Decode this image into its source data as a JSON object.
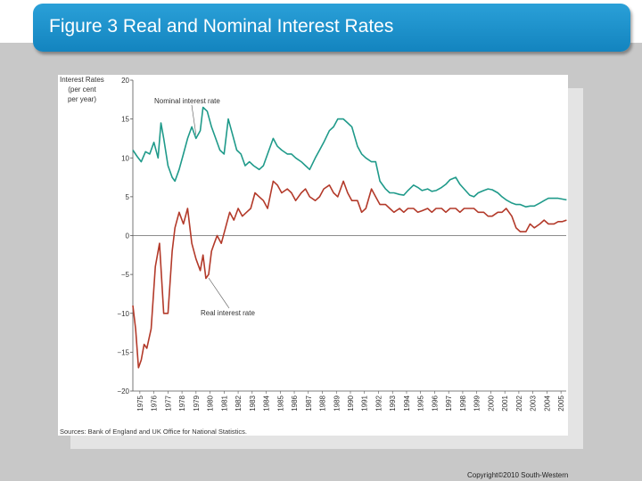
{
  "slide": {
    "title": "Figure 3 Real and Nominal Interest Rates",
    "copyright": "Copyright©2010  South-Western",
    "title_bar_color": "#1a8fcb"
  },
  "chart_data": {
    "type": "line",
    "ylabel_lines": [
      "Interest Rates",
      "(per cent",
      "per year)"
    ],
    "yticks": [
      20,
      15,
      10,
      5,
      0,
      -5,
      -10,
      -15,
      -20
    ],
    "ylim": [
      -20,
      20
    ],
    "xlim": [
      1975,
      2006
    ],
    "xtick_labels": [
      "1975",
      "1976",
      "1977",
      "1978",
      "1979",
      "1980",
      "1981",
      "1982",
      "1983",
      "1984",
      "1985",
      "1986",
      "1987",
      "1988",
      "1989",
      "1990",
      "1991",
      "1992",
      "1993",
      "1994",
      "1995",
      "1996",
      "1997",
      "1998",
      "1999",
      "2000",
      "2001",
      "2002",
      "2003",
      "2004",
      "2005"
    ],
    "source": "Sources: Bank of England and UK Office for National Statistics.",
    "annotations": [
      {
        "text": "Nominal interest rate",
        "series": 0,
        "point_x": 1979.55
      },
      {
        "text": "Real interest rate",
        "series": 1,
        "point_x": 1980.35
      }
    ],
    "series": [
      {
        "name": "Nominal interest rate",
        "color": "#1f9a8a",
        "x": [
          1975.0,
          1975.3,
          1975.6,
          1975.9,
          1976.2,
          1976.5,
          1976.8,
          1977.0,
          1977.2,
          1977.5,
          1977.8,
          1978.0,
          1978.3,
          1978.6,
          1978.9,
          1979.2,
          1979.5,
          1979.8,
          1980.0,
          1980.3,
          1980.6,
          1980.9,
          1981.2,
          1981.5,
          1981.8,
          1982.1,
          1982.4,
          1982.7,
          1983.0,
          1983.3,
          1983.6,
          1984.0,
          1984.3,
          1984.6,
          1985.0,
          1985.3,
          1985.6,
          1986.0,
          1986.3,
          1986.6,
          1987.0,
          1987.3,
          1987.6,
          1988.0,
          1988.3,
          1988.6,
          1989.0,
          1989.3,
          1989.6,
          1990.0,
          1990.3,
          1990.6,
          1991.0,
          1991.3,
          1991.6,
          1992.0,
          1992.3,
          1992.6,
          1993.0,
          1993.3,
          1993.6,
          1994.0,
          1994.3,
          1994.6,
          1995.0,
          1995.3,
          1995.6,
          1996.0,
          1996.3,
          1996.6,
          1997.0,
          1997.3,
          1997.6,
          1998.0,
          1998.3,
          1998.6,
          1999.0,
          1999.3,
          1999.6,
          2000.0,
          2000.3,
          2000.6,
          2001.0,
          2001.3,
          2001.6,
          2002.0,
          2002.3,
          2002.6,
          2003.0,
          2003.3,
          2003.6,
          2004.0,
          2004.3,
          2004.6,
          2005.0,
          2005.3,
          2005.6,
          2005.9
        ],
        "values": [
          11.0,
          10.2,
          9.5,
          10.8,
          10.5,
          12.0,
          10.0,
          14.5,
          12.5,
          9.0,
          7.5,
          7.0,
          8.5,
          10.5,
          12.5,
          14.0,
          12.5,
          13.5,
          16.5,
          16.0,
          14.0,
          12.5,
          11.0,
          10.5,
          15.0,
          13.0,
          11.0,
          10.5,
          9.0,
          9.5,
          9.0,
          8.5,
          9.0,
          10.5,
          12.5,
          11.5,
          11.0,
          10.5,
          10.5,
          10.0,
          9.5,
          9.0,
          8.5,
          10.0,
          11.0,
          12.0,
          13.5,
          14.0,
          15.0,
          15.0,
          14.5,
          14.0,
          11.5,
          10.5,
          10.0,
          9.5,
          9.5,
          7.0,
          6.0,
          5.5,
          5.5,
          5.3,
          5.2,
          5.8,
          6.5,
          6.2,
          5.8,
          6.0,
          5.7,
          5.8,
          6.2,
          6.6,
          7.2,
          7.5,
          6.6,
          6.0,
          5.2,
          5.0,
          5.5,
          5.8,
          6.0,
          5.9,
          5.5,
          5.0,
          4.6,
          4.2,
          4.0,
          4.0,
          3.7,
          3.8,
          3.8,
          4.2,
          4.5,
          4.8,
          4.8,
          4.8,
          4.7,
          4.6
        ]
      },
      {
        "name": "Real interest rate",
        "color": "#b33a2a",
        "x": [
          1975.0,
          1975.2,
          1975.4,
          1975.6,
          1975.8,
          1976.0,
          1976.3,
          1976.6,
          1976.9,
          1977.2,
          1977.5,
          1977.8,
          1978.0,
          1978.3,
          1978.6,
          1978.9,
          1979.2,
          1979.5,
          1979.8,
          1980.0,
          1980.2,
          1980.4,
          1980.6,
          1980.8,
          1981.0,
          1981.3,
          1981.6,
          1981.9,
          1982.2,
          1982.5,
          1982.8,
          1983.1,
          1983.4,
          1983.7,
          1984.0,
          1984.3,
          1984.6,
          1985.0,
          1985.3,
          1985.6,
          1986.0,
          1986.3,
          1986.6,
          1987.0,
          1987.3,
          1987.6,
          1988.0,
          1988.3,
          1988.6,
          1989.0,
          1989.3,
          1989.6,
          1990.0,
          1990.3,
          1990.6,
          1991.0,
          1991.3,
          1991.6,
          1992.0,
          1992.3,
          1992.6,
          1993.0,
          1993.3,
          1993.6,
          1994.0,
          1994.3,
          1994.6,
          1995.0,
          1995.3,
          1995.6,
          1996.0,
          1996.3,
          1996.6,
          1997.0,
          1997.3,
          1997.6,
          1998.0,
          1998.3,
          1998.6,
          1999.0,
          1999.3,
          1999.6,
          2000.0,
          2000.3,
          2000.6,
          2001.0,
          2001.3,
          2001.6,
          2002.0,
          2002.3,
          2002.6,
          2003.0,
          2003.3,
          2003.6,
          2004.0,
          2004.3,
          2004.6,
          2005.0,
          2005.3,
          2005.6,
          2005.9
        ],
        "values": [
          -9.0,
          -12.0,
          -17.0,
          -16.0,
          -14.0,
          -14.5,
          -12.0,
          -4.0,
          -1.0,
          -10.0,
          -10.0,
          -2.0,
          1.0,
          3.0,
          1.5,
          3.5,
          -1.0,
          -3.0,
          -4.5,
          -2.5,
          -5.5,
          -5.0,
          -2.0,
          -1.0,
          0.0,
          -1.0,
          1.0,
          3.0,
          2.0,
          3.5,
          2.5,
          3.0,
          3.5,
          5.5,
          5.0,
          4.5,
          3.5,
          7.0,
          6.5,
          5.5,
          6.0,
          5.5,
          4.5,
          5.5,
          6.0,
          5.0,
          4.5,
          5.0,
          6.0,
          6.5,
          5.5,
          5.0,
          7.0,
          5.5,
          4.5,
          4.5,
          3.0,
          3.5,
          6.0,
          5.0,
          4.0,
          4.0,
          3.5,
          3.0,
          3.5,
          3.0,
          3.5,
          3.5,
          3.0,
          3.2,
          3.5,
          3.0,
          3.5,
          3.5,
          3.0,
          3.5,
          3.5,
          3.0,
          3.5,
          3.5,
          3.5,
          3.0,
          3.0,
          2.5,
          2.5,
          3.0,
          3.0,
          3.5,
          2.5,
          1.0,
          0.5,
          0.5,
          1.5,
          1.0,
          1.5,
          2.0,
          1.5,
          1.5,
          1.8,
          1.8,
          2.0
        ]
      }
    ]
  }
}
